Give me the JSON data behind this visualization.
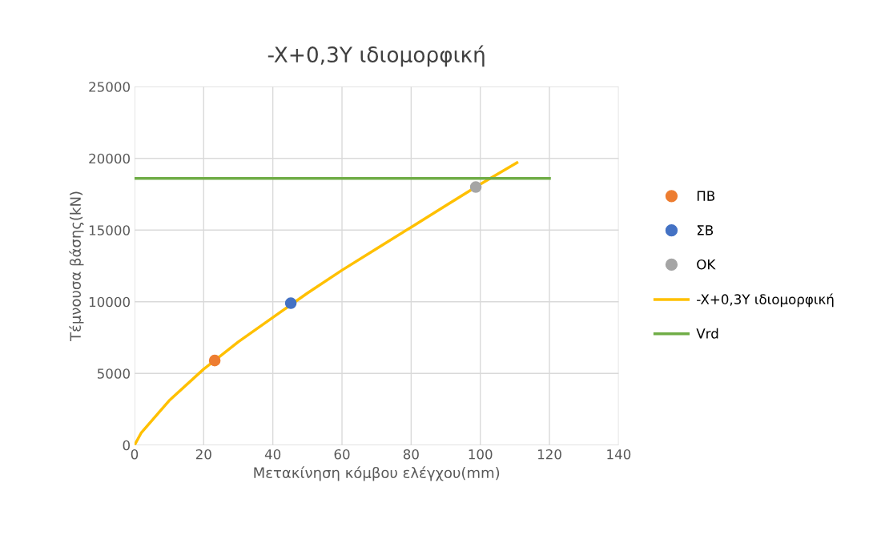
{
  "chart_data": {
    "type": "line",
    "title": "-X+0,3Y ιδιομορφική",
    "xlabel": "Μετακίνηση κόμβου ελέγχου(mm)",
    "ylabel": "Τέμνουσα βάσης(kN)",
    "xlim": [
      0,
      140
    ],
    "xticks": [
      0,
      20,
      40,
      60,
      80,
      100,
      120,
      140
    ],
    "ylim": [
      0,
      25000
    ],
    "yticks": [
      0,
      5000,
      10000,
      15000,
      20000,
      25000
    ],
    "grid": true,
    "legend": "right",
    "series": [
      {
        "name": "ΠΒ",
        "type": "scatter",
        "marker": "circle",
        "color": "#ed7d31",
        "x": [
          23.2
        ],
        "values": [
          5900
        ]
      },
      {
        "name": "ΣΒ",
        "type": "scatter",
        "marker": "circle",
        "color": "#4472c4",
        "x": [
          45.2
        ],
        "values": [
          9900
        ]
      },
      {
        "name": "ΟΚ",
        "type": "scatter",
        "marker": "circle",
        "color": "#a5a5a5",
        "x": [
          98.7
        ],
        "values": [
          18000
        ]
      },
      {
        "name": "-X+0,3Y ιδιομορφική",
        "color": "#ffc000",
        "x": [
          0,
          1.9,
          10,
          20,
          30,
          40,
          50,
          60,
          70,
          80,
          90,
          100,
          110.6
        ],
        "values": [
          0,
          840,
          3100,
          5300,
          7200,
          8900,
          10600,
          12200,
          13700,
          15200,
          16700,
          18200,
          19700
        ]
      },
      {
        "name": "Vrd",
        "color": "#70ad47",
        "x": [
          0,
          120
        ],
        "values": [
          18600,
          18600
        ]
      }
    ]
  }
}
